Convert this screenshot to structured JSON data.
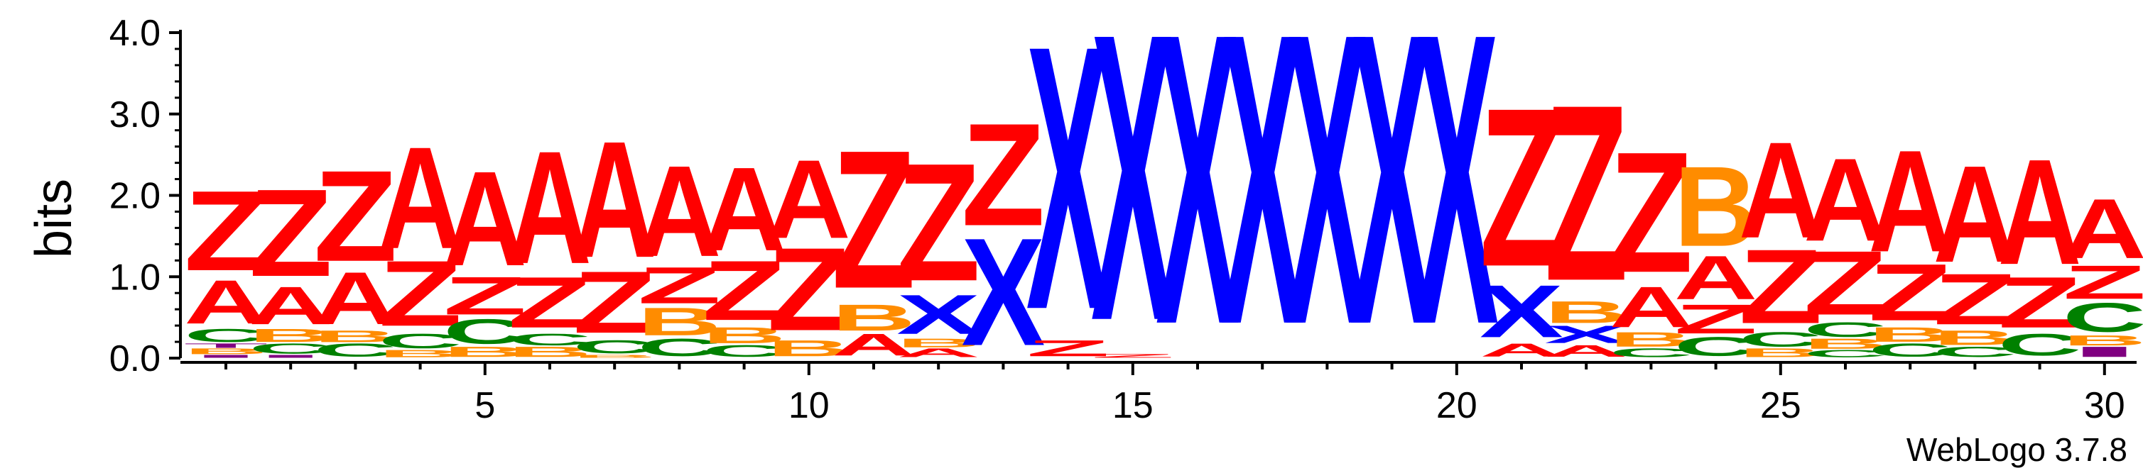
{
  "chart_data": {
    "type": "sequence_logo",
    "ylabel": "bits",
    "ylim": [
      0,
      4
    ],
    "yticks": [
      0.0,
      1.0,
      2.0,
      3.0,
      4.0
    ],
    "ytick_labels": [
      "0.0",
      "1.0",
      "2.0",
      "3.0",
      "4.0"
    ],
    "xticks": [
      5,
      10,
      15,
      20,
      25,
      30
    ],
    "xtick_labels": [
      "5",
      "10",
      "15",
      "20",
      "25",
      "30"
    ],
    "credit": "WebLogo 3.7.8",
    "colors": {
      "Z": "#ff0000",
      "A": "#ff0000",
      "X": "#0000ff",
      "B": "#ff8c00",
      "C": "#008000",
      "other": "#800080"
    },
    "positions": [
      {
        "pos": 1,
        "stack": [
          [
            "I",
            0.04
          ],
          [
            "B",
            0.08
          ],
          [
            "T",
            0.06
          ],
          [
            "C",
            0.18
          ],
          [
            "A",
            0.6
          ],
          [
            "Z",
            1.1
          ]
        ]
      },
      {
        "pos": 2,
        "stack": [
          [
            "I",
            0.04
          ],
          [
            "C",
            0.14
          ],
          [
            "B",
            0.18
          ],
          [
            "A",
            0.52
          ],
          [
            "Z",
            1.2
          ]
        ]
      },
      {
        "pos": 3,
        "stack": [
          [
            "C",
            0.18
          ],
          [
            "B",
            0.16
          ],
          [
            "A",
            0.72
          ],
          [
            "Z",
            1.25
          ]
        ]
      },
      {
        "pos": 4,
        "stack": [
          [
            "B",
            0.1
          ],
          [
            "C",
            0.2
          ],
          [
            "Z",
            0.9
          ],
          [
            "A",
            1.4
          ]
        ]
      },
      {
        "pos": 5,
        "stack": [
          [
            "B",
            0.14
          ],
          [
            "C",
            0.34
          ],
          [
            "Z",
            0.52
          ],
          [
            "A",
            1.3
          ]
        ]
      },
      {
        "pos": 6,
        "stack": [
          [
            "B",
            0.14
          ],
          [
            "C",
            0.16
          ],
          [
            "Z",
            0.7
          ],
          [
            "A",
            1.55
          ]
        ]
      },
      {
        "pos": 7,
        "stack": [
          [
            "B",
            0.04
          ],
          [
            "C",
            0.18
          ],
          [
            "Z",
            0.85
          ],
          [
            "A",
            1.6
          ]
        ]
      },
      {
        "pos": 8,
        "stack": [
          [
            "C",
            0.24
          ],
          [
            "B",
            0.38
          ],
          [
            "Z",
            0.5
          ],
          [
            "A",
            1.25
          ]
        ]
      },
      {
        "pos": 9,
        "stack": [
          [
            "C",
            0.16
          ],
          [
            "B",
            0.22
          ],
          [
            "Z",
            0.82
          ],
          [
            "A",
            1.15
          ]
        ]
      },
      {
        "pos": 10,
        "stack": [
          [
            "B",
            0.22
          ],
          [
            "Z",
            1.14
          ],
          [
            "A",
            1.08
          ]
        ]
      },
      {
        "pos": 11,
        "stack": [
          [
            "A",
            0.3
          ],
          [
            "B",
            0.36
          ],
          [
            "Z",
            1.9
          ]
        ]
      },
      {
        "pos": 12,
        "stack": [
          [
            "A",
            0.12
          ],
          [
            "B",
            0.12
          ],
          [
            "X",
            0.54
          ],
          [
            "Z",
            1.62
          ]
        ]
      },
      {
        "pos": 13,
        "stack": [
          [
            "X",
            1.48
          ],
          [
            "Z",
            1.41
          ]
        ]
      },
      {
        "pos": 14,
        "stack": [
          [
            "Z",
            0.22
          ],
          [
            "X",
            3.63
          ]
        ]
      },
      {
        "pos": 15,
        "stack": [
          [
            "Z",
            0.05
          ],
          [
            "X",
            3.95
          ]
        ]
      },
      {
        "pos": 16,
        "stack": [
          [
            "X",
            4.0
          ]
        ]
      },
      {
        "pos": 17,
        "stack": [
          [
            "X",
            4.0
          ]
        ]
      },
      {
        "pos": 18,
        "stack": [
          [
            "X",
            4.0
          ]
        ]
      },
      {
        "pos": 19,
        "stack": [
          [
            "X",
            4.0
          ]
        ]
      },
      {
        "pos": 20,
        "stack": [
          [
            "X",
            4.0
          ]
        ]
      },
      {
        "pos": 21,
        "stack": [
          [
            "A",
            0.18
          ],
          [
            "X",
            0.72
          ],
          [
            "Z",
            2.18
          ]
        ]
      },
      {
        "pos": 22,
        "stack": [
          [
            "A",
            0.16
          ],
          [
            "X",
            0.24
          ],
          [
            "B",
            0.3
          ],
          [
            "Z",
            2.42
          ]
        ]
      },
      {
        "pos": 23,
        "stack": [
          [
            "C",
            0.12
          ],
          [
            "B",
            0.2
          ],
          [
            "A",
            0.56
          ],
          [
            "Z",
            1.66
          ]
        ]
      },
      {
        "pos": 24,
        "stack": [
          [
            "C",
            0.26
          ],
          [
            "Z",
            0.4
          ],
          [
            "A",
            0.6
          ],
          [
            "B",
            1.1
          ]
        ]
      },
      {
        "pos": 25,
        "stack": [
          [
            "B",
            0.12
          ],
          [
            "C",
            0.2
          ],
          [
            "Z",
            1.02
          ],
          [
            "A",
            1.32
          ]
        ]
      },
      {
        "pos": 26,
        "stack": [
          [
            "C",
            0.1
          ],
          [
            "B",
            0.14
          ],
          [
            "C",
            0.2
          ],
          [
            "Z",
            0.88
          ],
          [
            "A",
            1.14
          ]
        ]
      },
      {
        "pos": 27,
        "stack": [
          [
            "C",
            0.18
          ],
          [
            "B",
            0.2
          ],
          [
            "Z",
            0.78
          ],
          [
            "A",
            1.4
          ]
        ]
      },
      {
        "pos": 28,
        "stack": [
          [
            "C",
            0.14
          ],
          [
            "B",
            0.2
          ],
          [
            "Z",
            0.7
          ],
          [
            "A",
            1.33
          ]
        ]
      },
      {
        "pos": 29,
        "stack": [
          [
            "C",
            0.3
          ],
          [
            "Z",
            0.7
          ],
          [
            "A",
            1.45
          ]
        ]
      },
      {
        "pos": 30,
        "stack": [
          [
            "I",
            0.14
          ],
          [
            "B",
            0.14
          ],
          [
            "C",
            0.4
          ],
          [
            "Z",
            0.46
          ],
          [
            "A",
            0.82
          ]
        ]
      }
    ]
  }
}
